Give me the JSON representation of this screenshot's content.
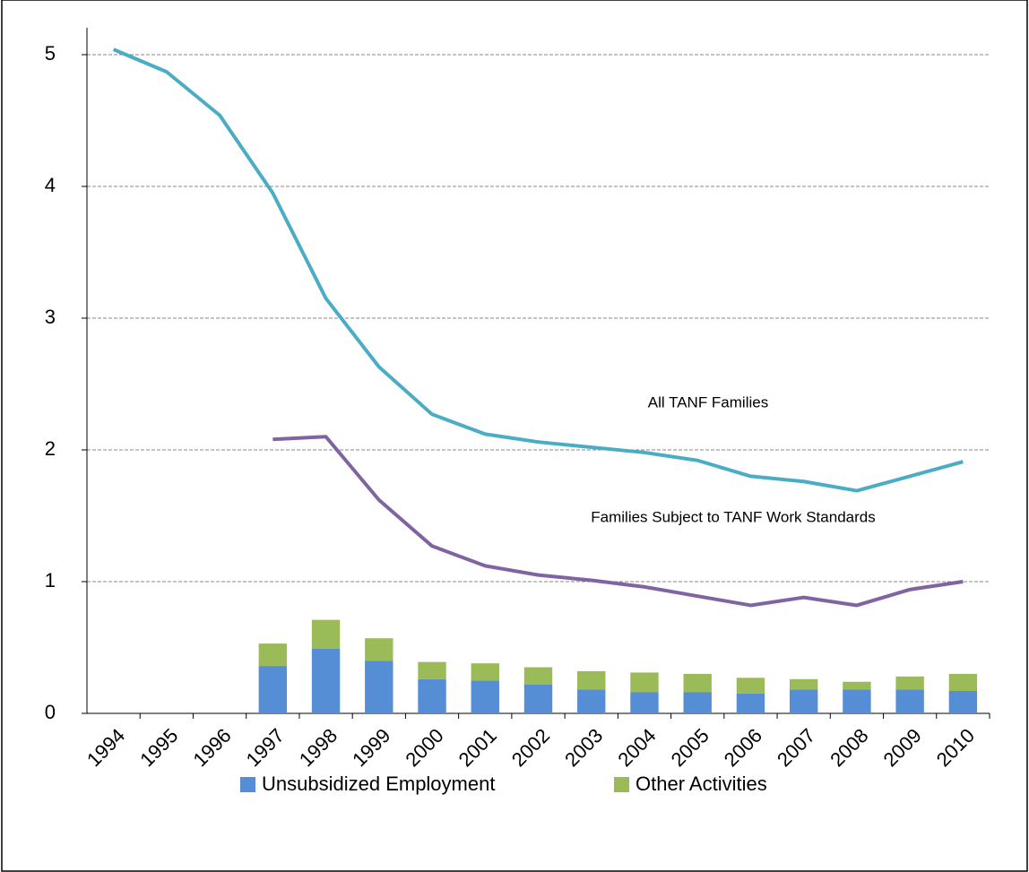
{
  "chart_data": {
    "type": "bar-line",
    "categories": [
      "1994",
      "1995",
      "1996",
      "1997",
      "1998",
      "1999",
      "2000",
      "2001",
      "2002",
      "2003",
      "2004",
      "2005",
      "2006",
      "2007",
      "2008",
      "2009",
      "2010"
    ],
    "series": [
      {
        "name": "Unsubsidized Employment",
        "kind": "bar",
        "color": "#558ed5",
        "values": [
          null,
          null,
          null,
          0.36,
          0.49,
          0.4,
          0.26,
          0.25,
          0.22,
          0.18,
          0.16,
          0.16,
          0.15,
          0.18,
          0.18,
          0.18,
          0.17
        ]
      },
      {
        "name": "Other Activities",
        "kind": "bar",
        "color": "#9bbb59",
        "values": [
          null,
          null,
          null,
          0.17,
          0.22,
          0.17,
          0.13,
          0.13,
          0.13,
          0.14,
          0.15,
          0.14,
          0.12,
          0.08,
          0.06,
          0.1,
          0.13
        ]
      },
      {
        "name": "All TANF Families",
        "kind": "line",
        "color": "#4bacc6",
        "values": [
          5.04,
          4.87,
          4.54,
          3.95,
          3.15,
          2.63,
          2.27,
          2.12,
          2.06,
          2.02,
          1.98,
          1.92,
          1.8,
          1.76,
          1.69,
          1.8,
          1.91
        ]
      },
      {
        "name": "Families Subject to TANF Work Standards",
        "kind": "line",
        "color": "#8064a2",
        "values": [
          null,
          null,
          null,
          2.08,
          2.1,
          1.62,
          1.27,
          1.12,
          1.05,
          1.01,
          0.96,
          0.89,
          0.82,
          0.88,
          0.82,
          0.94,
          1.0
        ]
      }
    ],
    "ylim": [
      0,
      5
    ],
    "yticks": [
      0,
      1,
      2,
      3,
      4,
      5
    ],
    "grid": true
  }
}
